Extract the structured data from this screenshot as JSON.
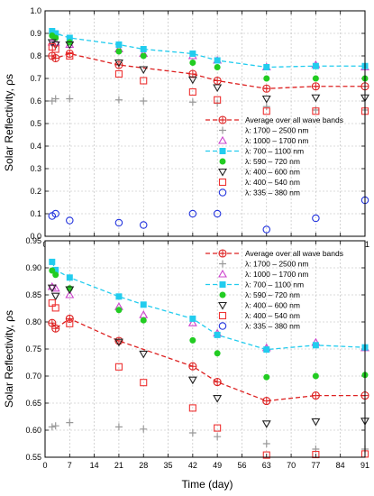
{
  "figure": {
    "ylabel_top": "Solar Reflectivity, ρs",
    "ylabel_bottom": "Solar Reflectivity, ρs",
    "xlabel": "Time (day)"
  },
  "chart_data": [
    {
      "type": "scatter",
      "panel": "top",
      "xlim": [
        0,
        91
      ],
      "ylim": [
        0.0,
        1.0
      ],
      "xticks": [
        0,
        7,
        14,
        21,
        28,
        35,
        42,
        49,
        56,
        63,
        70,
        77,
        84,
        91
      ],
      "yticks": [
        0.0,
        0.1,
        0.2,
        0.3,
        0.4,
        0.5,
        0.6,
        0.7,
        0.8,
        0.9,
        1.0
      ],
      "ytick_decimals": 1,
      "grid": true,
      "legend_position": "middle-right",
      "xlabel": "Time (day)",
      "ylabel": "Solar Reflectivity, ρs",
      "series": [
        {
          "name": "Average over all wave bands",
          "marker": "circle-plus",
          "color": "#dd2222",
          "line": "dashed",
          "x": [
            2,
            3,
            7,
            21,
            42,
            49,
            63,
            77,
            91
          ],
          "y": [
            0.8,
            0.79,
            0.81,
            0.76,
            0.72,
            0.69,
            0.655,
            0.665,
            0.665
          ]
        },
        {
          "name": "λ: 1700 – 2500 nm",
          "marker": "plus",
          "color": "#999999",
          "x": [
            2,
            3,
            7,
            21,
            28,
            42,
            49,
            63,
            77,
            91
          ],
          "y": [
            0.6,
            0.61,
            0.61,
            0.605,
            0.6,
            0.595,
            0.59,
            0.575,
            0.56,
            0.56
          ]
        },
        {
          "name": "λ: 1000 – 1700 nm",
          "marker": "triangle-up",
          "color": "#cc44cc",
          "x": [
            2,
            3,
            7,
            21,
            28,
            42,
            49,
            63,
            77,
            91
          ],
          "y": [
            0.86,
            0.86,
            0.85,
            0.83,
            0.81,
            0.8,
            0.78,
            0.75,
            0.76,
            0.75
          ]
        },
        {
          "name": "λ: 700 – 1100 nm",
          "marker": "square-filled",
          "color": "#22ccee",
          "line": "dashed",
          "x": [
            2,
            3,
            7,
            21,
            28,
            42,
            49,
            63,
            77,
            91
          ],
          "y": [
            0.91,
            0.9,
            0.88,
            0.85,
            0.83,
            0.81,
            0.78,
            0.75,
            0.755,
            0.755
          ]
        },
        {
          "name": "λ: 590 – 720 nm",
          "marker": "circle-filled",
          "color": "#22cc22",
          "x": [
            2,
            3,
            7,
            21,
            28,
            42,
            49,
            63,
            77,
            91
          ],
          "y": [
            0.89,
            0.88,
            0.86,
            0.82,
            0.8,
            0.77,
            0.75,
            0.7,
            0.7,
            0.7
          ]
        },
        {
          "name": "λ: 400 – 600 nm",
          "marker": "triangle-down",
          "color": "#222222",
          "x": [
            2,
            3,
            7,
            21,
            28,
            42,
            49,
            63,
            77,
            91
          ],
          "y": [
            0.86,
            0.85,
            0.85,
            0.77,
            0.74,
            0.695,
            0.66,
            0.61,
            0.615,
            0.615
          ]
        },
        {
          "name": "λ: 400 – 540 nm",
          "marker": "square-open",
          "color": "#ee3333",
          "x": [
            2,
            3,
            7,
            21,
            28,
            42,
            49,
            63,
            77,
            91
          ],
          "y": [
            0.84,
            0.83,
            0.8,
            0.72,
            0.69,
            0.64,
            0.605,
            0.555,
            0.555,
            0.555
          ]
        },
        {
          "name": "λ: 335 – 380 nm",
          "marker": "circle-open",
          "color": "#2233dd",
          "x": [
            2,
            3,
            7,
            21,
            28,
            42,
            49,
            63,
            77,
            91
          ],
          "y": [
            0.09,
            0.1,
            0.07,
            0.06,
            0.05,
            0.1,
            0.1,
            0.03,
            0.08,
            0.16
          ]
        }
      ]
    },
    {
      "type": "scatter",
      "panel": "bottom",
      "xlim": [
        0,
        91
      ],
      "ylim": [
        0.55,
        0.95
      ],
      "xticks": [
        0,
        7,
        14,
        21,
        28,
        35,
        42,
        49,
        56,
        63,
        70,
        77,
        84,
        91
      ],
      "yticks": [
        0.55,
        0.6,
        0.65,
        0.7,
        0.75,
        0.8,
        0.85,
        0.9,
        0.95
      ],
      "ytick_decimals": 2,
      "grid": true,
      "legend_position": "top-right",
      "xlabel": "Time (day)",
      "ylabel": "Solar Reflectivity, ρs",
      "series": [
        {
          "name": "Average over all wave bands",
          "marker": "circle-plus",
          "color": "#dd2222",
          "line": "dashed",
          "x": [
            2,
            3,
            7,
            21,
            42,
            49,
            63,
            77,
            91
          ],
          "y": [
            0.798,
            0.788,
            0.806,
            0.765,
            0.718,
            0.689,
            0.654,
            0.664,
            0.664
          ]
        },
        {
          "name": "λ: 1700 – 2500 nm",
          "marker": "plus",
          "color": "#999999",
          "x": [
            2,
            3,
            7,
            21,
            28,
            42,
            49,
            63,
            77,
            91
          ],
          "y": [
            0.606,
            0.608,
            0.614,
            0.606,
            0.602,
            0.595,
            0.588,
            0.575,
            0.565,
            0.565
          ]
        },
        {
          "name": "λ: 1000 – 1700 nm",
          "marker": "triangle-up",
          "color": "#cc44cc",
          "x": [
            2,
            3,
            7,
            21,
            28,
            42,
            49,
            63,
            77,
            91
          ],
          "y": [
            0.865,
            0.862,
            0.85,
            0.828,
            0.813,
            0.798,
            0.779,
            0.752,
            0.762,
            0.752
          ]
        },
        {
          "name": "λ: 700 – 1100 nm",
          "marker": "square-filled",
          "color": "#22ccee",
          "line": "dashed",
          "x": [
            2,
            3,
            7,
            21,
            28,
            42,
            49,
            63,
            77,
            91
          ],
          "y": [
            0.911,
            0.896,
            0.882,
            0.847,
            0.832,
            0.806,
            0.776,
            0.749,
            0.757,
            0.753
          ]
        },
        {
          "name": "λ: 590 – 720 nm",
          "marker": "circle-filled",
          "color": "#22cc22",
          "x": [
            2,
            3,
            7,
            21,
            28,
            42,
            49,
            63,
            77,
            91
          ],
          "y": [
            0.895,
            0.887,
            0.862,
            0.822,
            0.803,
            0.766,
            0.742,
            0.698,
            0.7,
            0.702
          ]
        },
        {
          "name": "λ: 400 – 600 nm",
          "marker": "triangle-down",
          "color": "#222222",
          "x": [
            2,
            3,
            7,
            21,
            28,
            42,
            49,
            63,
            77,
            91
          ],
          "y": [
            0.863,
            0.848,
            0.86,
            0.763,
            0.741,
            0.693,
            0.659,
            0.612,
            0.616,
            0.617
          ]
        },
        {
          "name": "λ: 400 – 540 nm",
          "marker": "square-open",
          "color": "#ee3333",
          "x": [
            2,
            3,
            7,
            21,
            28,
            42,
            49,
            63,
            77,
            91
          ],
          "y": [
            0.835,
            0.826,
            0.797,
            0.717,
            0.688,
            0.641,
            0.604,
            0.554,
            0.555,
            0.556
          ]
        },
        {
          "name": "λ: 335 – 380 nm",
          "marker": "circle-open",
          "color": "#2233dd",
          "x": [],
          "y": []
        }
      ]
    }
  ]
}
